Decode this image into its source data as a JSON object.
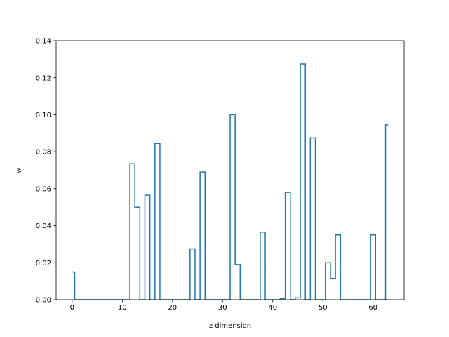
{
  "chart_data": {
    "type": "line",
    "drawstyle": "steps-mid",
    "title": "",
    "xlabel": "z dimension",
    "ylabel": "w",
    "xlim": [
      -3.2,
      66.2
    ],
    "ylim": [
      0,
      0.14
    ],
    "xticks": [
      0,
      10,
      20,
      30,
      40,
      50,
      60
    ],
    "yticks": [
      0.0,
      0.02,
      0.04,
      0.06,
      0.08,
      0.1,
      0.12,
      0.14
    ],
    "xtick_labels": [
      "0",
      "10",
      "20",
      "30",
      "40",
      "50",
      "60"
    ],
    "ytick_labels": [
      "0.00",
      "0.02",
      "0.04",
      "0.06",
      "0.08",
      "0.10",
      "0.12",
      "0.14"
    ],
    "grid": false,
    "line_color": "#1f77b4",
    "series": [
      {
        "x": [
          0,
          1,
          2,
          3,
          4,
          5,
          6,
          7,
          8,
          9,
          10,
          11,
          12,
          13,
          14,
          15,
          16,
          17,
          18,
          19,
          20,
          21,
          22,
          23,
          24,
          25,
          26,
          27,
          28,
          29,
          30,
          31,
          32,
          33,
          34,
          35,
          36,
          37,
          38,
          39,
          40,
          41,
          42,
          43,
          44,
          45,
          46,
          47,
          48,
          49,
          50,
          51,
          52,
          53,
          54,
          55,
          56,
          57,
          58,
          59,
          60,
          61,
          62,
          63
        ],
        "values": [
          0.015,
          0,
          0,
          0,
          0,
          0,
          0,
          0,
          0,
          0,
          0,
          0,
          0.0735,
          0.05,
          0,
          0.0565,
          0,
          0.0845,
          0,
          0,
          0,
          0,
          0,
          0,
          0.0275,
          0,
          0.069,
          0,
          0,
          0,
          0,
          0,
          0.1,
          0.019,
          0,
          0,
          0,
          0,
          0.0365,
          0,
          0,
          0,
          0.0005,
          0.058,
          0,
          0.001,
          0.1275,
          0,
          0.0875,
          0,
          0,
          0.02,
          0.0115,
          0.035,
          0,
          0,
          0,
          0,
          0,
          0,
          0.035,
          0,
          0,
          0.0945
        ]
      }
    ]
  }
}
